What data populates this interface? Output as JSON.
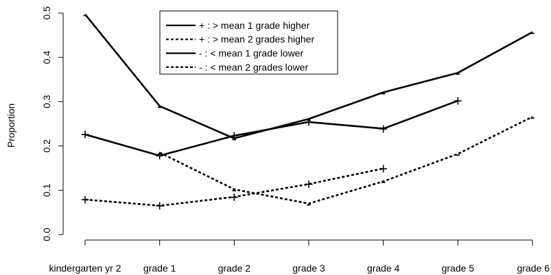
{
  "chart_data": {
    "type": "line",
    "title": "",
    "xlabel": "",
    "ylabel": "Proportion",
    "categories": [
      "kindergarten yr 2",
      "grade 1",
      "grade 2",
      "grade 3",
      "grade 4",
      "grade 5",
      "grade 6"
    ],
    "ylim": [
      0.0,
      0.5
    ],
    "y_ticks": [
      0.0,
      0.1,
      0.2,
      0.3,
      0.4,
      0.5
    ],
    "y_tick_labels": [
      "0.0",
      "0.1",
      "0.2",
      "0.3",
      "0.4",
      "0.5"
    ],
    "grid": false,
    "legend_position": "top-center",
    "series": [
      {
        "name": "+ : > mean 1 grade higher",
        "marker": "+",
        "style": "solid",
        "values": [
          0.226,
          0.178,
          0.223,
          0.254,
          0.239,
          0.302,
          null
        ]
      },
      {
        "name": "+ : > mean 2 grades higher",
        "marker": "+",
        "style": "dashed",
        "values": [
          0.079,
          0.065,
          0.085,
          0.114,
          0.149,
          null,
          null
        ]
      },
      {
        "name": "- : < mean 1 grade lower",
        "marker": "-",
        "style": "solid",
        "values": [
          0.497,
          0.29,
          0.217,
          0.261,
          0.321,
          0.365,
          0.457
        ]
      },
      {
        "name": "- : < mean 2 grades lower",
        "marker": "-",
        "style": "dashed",
        "values": [
          null,
          0.185,
          0.102,
          0.07,
          0.12,
          0.182,
          0.266
        ]
      }
    ]
  }
}
